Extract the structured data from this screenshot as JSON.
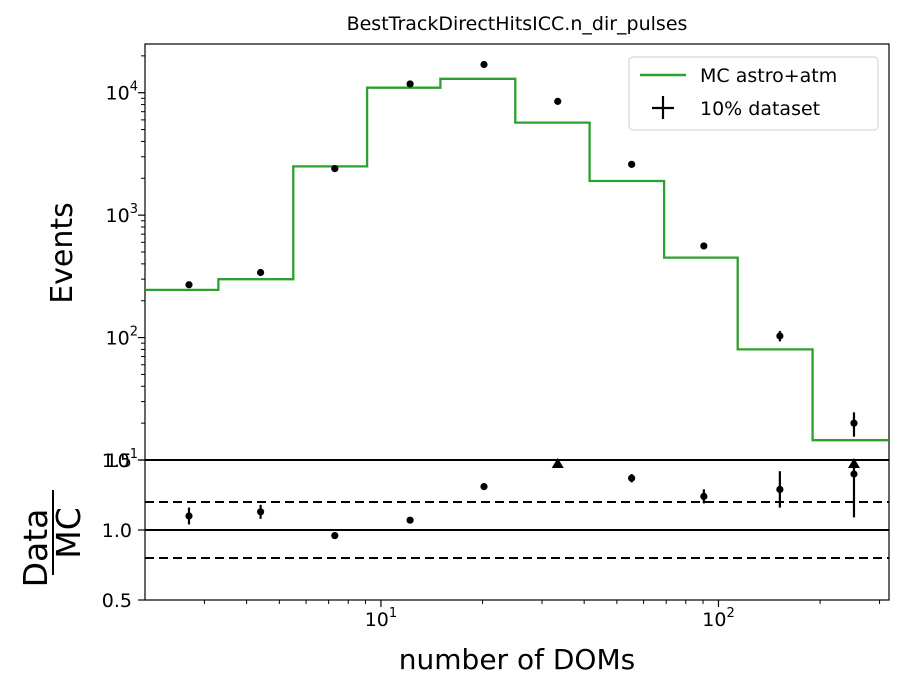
{
  "chart_data": {
    "type": "step",
    "title": "BestTrackDirectHitsICC.n_dir_pulses",
    "xlabel": "number of DOMs",
    "x_scale": "log",
    "xlim": [
      2.0,
      320
    ],
    "x_ticks": [
      {
        "value": 10,
        "base": "10",
        "exp": "1"
      },
      {
        "value": 100,
        "base": "10",
        "exp": "2"
      }
    ],
    "bin_edges": [
      2.0,
      3.3,
      5.5,
      9.1,
      15.0,
      25.0,
      41.5,
      69.0,
      114.0,
      190.0,
      320.0
    ],
    "main": {
      "ylabel": "Events",
      "y_scale": "log",
      "ylim": [
        10,
        25000
      ],
      "y_ticks": [
        {
          "value": 10,
          "base": "10",
          "exp": "1"
        },
        {
          "value": 100,
          "base": "10",
          "exp": "2"
        },
        {
          "value": 1000,
          "base": "10",
          "exp": "3"
        },
        {
          "value": 10000,
          "base": "10",
          "exp": "4"
        }
      ],
      "series": [
        {
          "name": "MC astro+atm",
          "kind": "step",
          "color": "#2ca02c",
          "values": [
            245,
            300,
            2500,
            11000,
            13000,
            5700,
            1900,
            450,
            80,
            14.5
          ]
        },
        {
          "name": "10% dataset",
          "kind": "errorbar",
          "color": "#000000",
          "x": [
            2.7,
            4.4,
            7.3,
            12.2,
            20.2,
            33.4,
            55.3,
            90.5,
            152,
            252
          ],
          "values": [
            270,
            340,
            2400,
            11800,
            17000,
            8500,
            2600,
            560,
            103,
            20
          ],
          "errors": [
            16,
            18,
            49,
            109,
            130,
            92,
            51,
            24,
            10,
            4.5
          ]
        }
      ],
      "legend": {
        "position": "top-right",
        "labels": [
          "MC astro+atm",
          "10% dataset"
        ]
      }
    },
    "ratio": {
      "ylabel_numerator": "Data",
      "ylabel_denominator": "MC",
      "ylim": [
        0.5,
        1.5
      ],
      "y_ticks": [
        "0.5",
        "1.0",
        "1.5"
      ],
      "reference_lines": [
        {
          "value": 1.0,
          "style": "solid"
        },
        {
          "value": 1.2,
          "style": "dashed"
        },
        {
          "value": 0.8,
          "style": "dashed"
        },
        {
          "value": 1.5,
          "style": "solid"
        }
      ],
      "points": [
        {
          "x": 2.7,
          "value": 1.1,
          "error": 0.06
        },
        {
          "x": 4.4,
          "value": 1.13,
          "error": 0.05
        },
        {
          "x": 7.3,
          "value": 0.96,
          "error": 0.02
        },
        {
          "x": 12.2,
          "value": 1.07,
          "error": 0.01
        },
        {
          "x": 20.2,
          "value": 1.31,
          "error": 0.01
        },
        {
          "x": 33.4,
          "value": 1.49,
          "error": 0.02,
          "overflow": true
        },
        {
          "x": 55.3,
          "value": 1.37,
          "error": 0.03
        },
        {
          "x": 90.5,
          "value": 1.24,
          "error": 0.05
        },
        {
          "x": 152,
          "value": 1.29,
          "error": 0.13
        },
        {
          "x": 252,
          "value": 1.4,
          "error": 0.31,
          "overflow": true
        }
      ]
    }
  }
}
